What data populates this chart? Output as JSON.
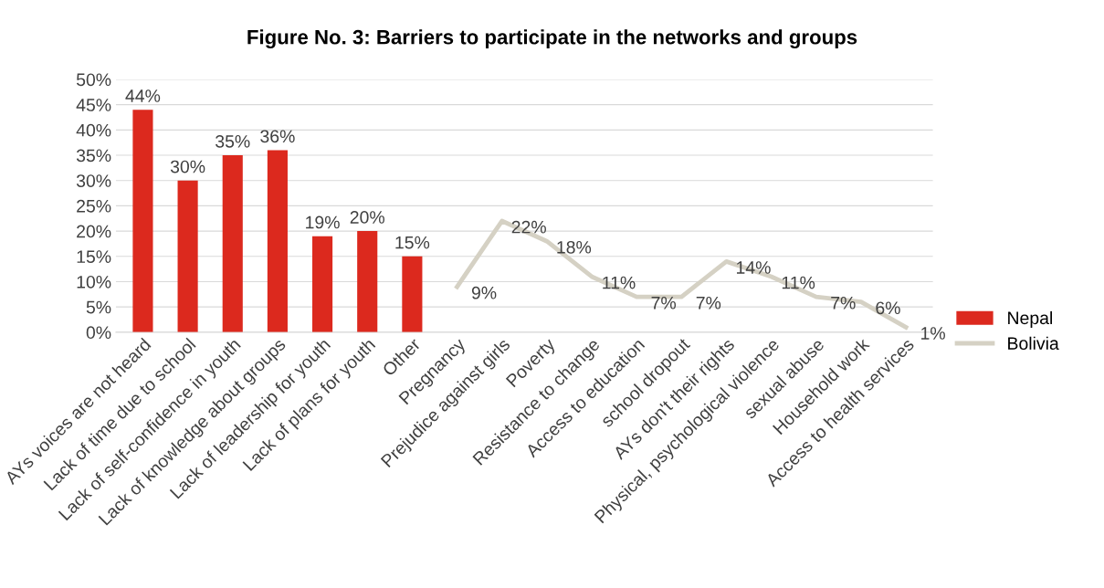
{
  "chart_data": {
    "type": "bar",
    "title": "Figure No. 3: Barriers to participate in the networks and groups",
    "categories": [
      "AYs voices are not heard",
      "Lack of time due to school",
      "Lack of self-confidence in youth",
      "Lack of knowledge about groups",
      "Lack of leadership for youth",
      "Lack of plans for youth",
      "Other",
      "Pregnancy",
      "Prejudice against girls",
      "Poverty",
      "Resistance to change",
      "Access to education",
      "school dropout",
      "AYs don't their rights",
      "Physical, psychological violence",
      "sexual abuse",
      "Household work",
      "Access to health services"
    ],
    "series": [
      {
        "name": "Nepal",
        "color": "#dc291e",
        "values": [
          44,
          30,
          35,
          36,
          19,
          20,
          15,
          null,
          null,
          null,
          null,
          null,
          null,
          null,
          null,
          null,
          null,
          null
        ],
        "value_labels": [
          "44%",
          "30%",
          "35%",
          "36%",
          "19%",
          "20%",
          "15%",
          null,
          null,
          null,
          null,
          null,
          null,
          null,
          null,
          null,
          null,
          null
        ]
      },
      {
        "name": "Bolivia",
        "type": "line",
        "color": "#d5d1c4",
        "values": [
          null,
          null,
          null,
          null,
          null,
          null,
          null,
          9,
          22,
          18,
          11,
          7,
          7,
          14,
          11,
          7,
          6,
          1
        ],
        "value_labels": [
          null,
          null,
          null,
          null,
          null,
          null,
          null,
          "9%",
          "22%",
          "18%",
          "11%",
          "7%",
          "7%",
          "14%",
          "11%",
          "7%",
          "6%",
          "1%"
        ]
      }
    ],
    "ylim": [
      0,
      50
    ],
    "yticks": [
      {
        "value": 0,
        "label": "0%"
      },
      {
        "value": 5,
        "label": "5%"
      },
      {
        "value": 10,
        "label": "10%"
      },
      {
        "value": 15,
        "label": "15%"
      },
      {
        "value": 20,
        "label": "20%"
      },
      {
        "value": 25,
        "label": "25%"
      },
      {
        "value": 30,
        "label": "30%"
      },
      {
        "value": 35,
        "label": "35%"
      },
      {
        "value": 40,
        "label": "40%"
      },
      {
        "value": 45,
        "label": "45%"
      },
      {
        "value": 50,
        "label": "50%"
      }
    ],
    "grid": "y",
    "legend": "right",
    "marker": "none",
    "line_style": "solid"
  }
}
